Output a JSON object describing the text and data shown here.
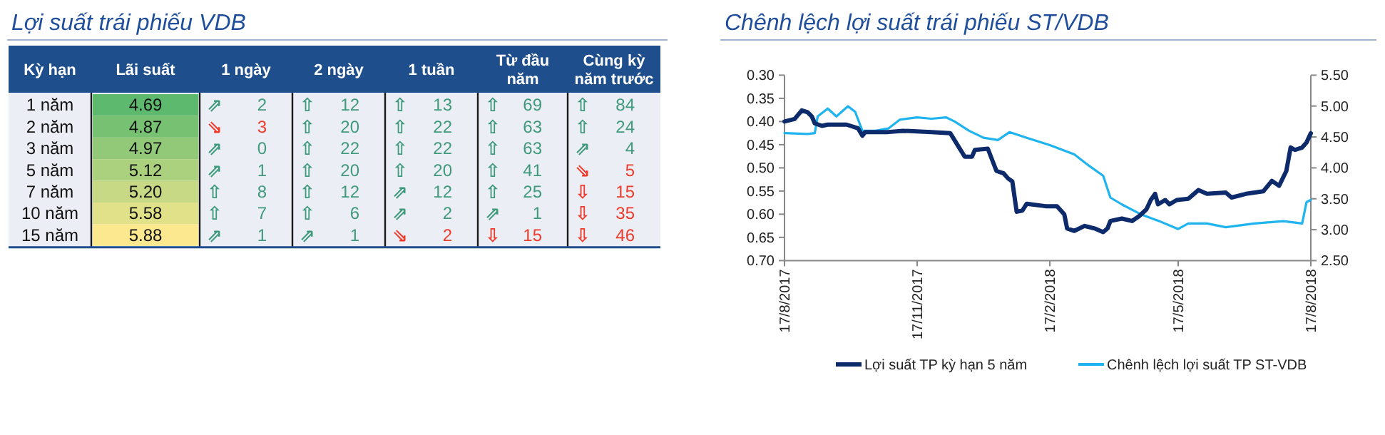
{
  "chart_data": [
    {
      "type": "other",
      "title": "Lợi suất trái phiếu VDB",
      "ylabel": "Kỳ hạn",
      "categories": [
        "Lãi suất",
        "1 ngày",
        "2 ngày",
        "1 tuần",
        "Từ đầu năm",
        "Cùng kỳ năm trước"
      ],
      "y_categories": [
        "1 năm",
        "2 năm",
        "3 năm",
        "5 năm",
        "7 năm",
        "10 năm",
        "15 năm"
      ],
      "colors": [
        [
          "#111111",
          "#3f9a7c",
          "#3f9a7c",
          "#3f9a7c",
          "#3f9a7c",
          "#3f9a7c"
        ],
        [
          "#111111",
          "#ee3b2b",
          "#3f9a7c",
          "#3f9a7c",
          "#3f9a7c",
          "#3f9a7c"
        ],
        [
          "#111111",
          "#3f9a7c",
          "#3f9a7c",
          "#3f9a7c",
          "#3f9a7c",
          "#3f9a7c"
        ],
        [
          "#111111",
          "#3f9a7c",
          "#3f9a7c",
          "#3f9a7c",
          "#3f9a7c",
          "#ee3b2b"
        ],
        [
          "#111111",
          "#3f9a7c",
          "#3f9a7c",
          "#3f9a7c",
          "#3f9a7c",
          "#ee3b2b"
        ],
        [
          "#111111",
          "#3f9a7c",
          "#3f9a7c",
          "#3f9a7c",
          "#3f9a7c",
          "#ee3b2b"
        ],
        [
          "#111111",
          "#3f9a7c",
          "#3f9a7c",
          "#ee3b2b",
          "#ee3b2b",
          "#ee3b2b"
        ]
      ],
      "cell_labels": [
        [
          "4.69",
          "⇗ 2",
          "⇧ 12",
          "⇧ 13",
          "⇧ 69",
          "⇧ 84"
        ],
        [
          "4.87",
          "⇘ 3",
          "⇧ 20",
          "⇧ 22",
          "⇧ 63",
          "⇧ 24"
        ],
        [
          "4.97",
          "⇗ 0",
          "⇧ 22",
          "⇧ 22",
          "⇧ 63",
          "⇗ 4"
        ],
        [
          "5.12",
          "⇗ 1",
          "⇧ 20",
          "⇧ 20",
          "⇧ 41",
          "⇘ 5"
        ],
        [
          "5.20",
          "⇧ 8",
          "⇧ 12",
          "⇗ 12",
          "⇧ 25",
          "⇩ 15"
        ],
        [
          "5.58",
          "⇧ 7",
          "⇧ 6",
          "⇗ 2",
          "⇗ 1",
          "⇩ 35"
        ],
        [
          "5.88",
          "⇗ 1",
          "⇗ 1",
          "⇘ 2",
          "⇩ 15",
          "⇩ 46"
        ]
      ]
    },
    {
      "type": "line",
      "title": "Chênh lệch lợi suất trái phiếu ST/VDB",
      "legend": "bottom",
      "grid": false,
      "xlim": [
        "2017-08-17",
        "2018-08-17"
      ],
      "xticks": [
        {
          "value": "2017-08-17",
          "label": "17/8/2017"
        },
        {
          "value": "2017-11-17",
          "label": "17/11/2017"
        },
        {
          "value": "2018-02-17",
          "label": "17/2/2018"
        },
        {
          "value": "2018-05-17",
          "label": "17/5/2018"
        },
        {
          "value": "2018-08-17",
          "label": "17/8/2018"
        }
      ],
      "ylim": [
        0.7,
        0.3
      ],
      "yticks": [
        {
          "value": 0.3,
          "label": "0.30"
        },
        {
          "value": 0.35,
          "label": "0.35"
        },
        {
          "value": 0.4,
          "label": "0.40"
        },
        {
          "value": 0.45,
          "label": "0.45"
        },
        {
          "value": 0.5,
          "label": "0.50"
        },
        {
          "value": 0.55,
          "label": "0.55"
        },
        {
          "value": 0.6,
          "label": "0.60"
        },
        {
          "value": 0.65,
          "label": "0.65"
        },
        {
          "value": 0.7,
          "label": "0.70"
        }
      ],
      "y2lim": [
        2.5,
        5.5
      ],
      "y2ticks": [
        {
          "value": 2.5,
          "label": "2.50"
        },
        {
          "value": 3,
          "label": "3.00"
        },
        {
          "value": 3.5,
          "label": "3.50"
        },
        {
          "value": 4,
          "label": "4.00"
        },
        {
          "value": 4.5,
          "label": "4.50"
        },
        {
          "value": 5,
          "label": "5.00"
        },
        {
          "value": 5.5,
          "label": "5.50"
        }
      ],
      "series": [
        {
          "name": "Lợi suất TP kỳ hạn 5 năm",
          "color": "#0d2a6b",
          "axis": "y2",
          "x": [
            "2017-08-17",
            "2017-08-24",
            "2017-08-29",
            "2017-09-02",
            "2017-09-05",
            "2017-09-07",
            "2017-09-12",
            "2017-09-16",
            "2017-09-29",
            "2017-10-07",
            "2017-10-10",
            "2017-10-12",
            "2017-10-28",
            "2017-11-07",
            "2017-11-27",
            "2017-12-10",
            "2017-12-15",
            "2017-12-20",
            "2017-12-25",
            "2017-12-27",
            "2018-01-05",
            "2018-01-11",
            "2018-01-16",
            "2018-01-19",
            "2018-01-22",
            "2018-01-25",
            "2018-01-29",
            "2018-02-01",
            "2018-02-14",
            "2018-02-22",
            "2018-02-27",
            "2018-03-01",
            "2018-03-06",
            "2018-03-13",
            "2018-03-20",
            "2018-03-26",
            "2018-03-29",
            "2018-03-31",
            "2018-04-08",
            "2018-04-15",
            "2018-04-20",
            "2018-04-25",
            "2018-04-28",
            "2018-05-01",
            "2018-05-03",
            "2018-05-08",
            "2018-05-11",
            "2018-05-16",
            "2018-05-24",
            "2018-05-31",
            "2018-06-06",
            "2018-06-19",
            "2018-06-23",
            "2018-07-03",
            "2018-07-15",
            "2018-07-21",
            "2018-07-26",
            "2018-07-31",
            "2018-08-03",
            "2018-08-06",
            "2018-08-11",
            "2018-08-14",
            "2018-08-17"
          ],
          "values": [
            4.75,
            4.79,
            4.93,
            4.9,
            4.83,
            4.72,
            4.68,
            4.7,
            4.7,
            4.64,
            4.52,
            4.58,
            4.58,
            4.6,
            4.58,
            4.56,
            4.37,
            4.18,
            4.18,
            4.29,
            4.31,
            3.95,
            3.91,
            3.83,
            3.78,
            3.29,
            3.31,
            3.42,
            3.38,
            3.38,
            3.25,
            3.02,
            2.98,
            3.06,
            3.02,
            2.96,
            3.02,
            3.14,
            3.18,
            3.14,
            3.22,
            3.33,
            3.48,
            3.58,
            3.41,
            3.48,
            3.41,
            3.48,
            3.5,
            3.64,
            3.58,
            3.6,
            3.52,
            3.58,
            3.62,
            3.79,
            3.71,
            3.95,
            4.33,
            4.29,
            4.33,
            4.41,
            4.56
          ]
        },
        {
          "name": "Chênh lệch lợi suất TP ST-VDB",
          "color": "#1fb4ef",
          "axis": "y",
          "x": [
            "2017-08-17",
            "2017-09-02",
            "2017-09-07",
            "2017-09-09",
            "2017-09-16",
            "2017-09-22",
            "2017-09-30",
            "2017-10-05",
            "2017-10-10",
            "2017-10-19",
            "2017-10-28",
            "2017-11-05",
            "2017-11-17",
            "2017-11-27",
            "2017-12-07",
            "2017-12-13",
            "2017-12-23",
            "2018-01-02",
            "2018-01-12",
            "2018-01-20",
            "2018-02-01",
            "2018-02-17",
            "2018-03-06",
            "2018-03-16",
            "2018-03-26",
            "2018-03-31",
            "2018-04-08",
            "2018-04-21",
            "2018-05-04",
            "2018-05-17",
            "2018-05-24",
            "2018-06-06",
            "2018-06-19",
            "2018-07-09",
            "2018-07-29",
            "2018-08-11",
            "2018-08-14",
            "2018-08-17"
          ],
          "values": [
            0.425,
            0.427,
            0.425,
            0.389,
            0.372,
            0.389,
            0.367,
            0.379,
            0.42,
            0.42,
            0.415,
            0.396,
            0.391,
            0.394,
            0.391,
            0.4,
            0.42,
            0.435,
            0.44,
            0.423,
            0.435,
            0.451,
            0.471,
            0.495,
            0.517,
            0.564,
            0.579,
            0.6,
            0.615,
            0.632,
            0.62,
            0.62,
            0.628,
            0.62,
            0.615,
            0.62,
            0.574,
            0.569
          ]
        }
      ]
    }
  ]
}
